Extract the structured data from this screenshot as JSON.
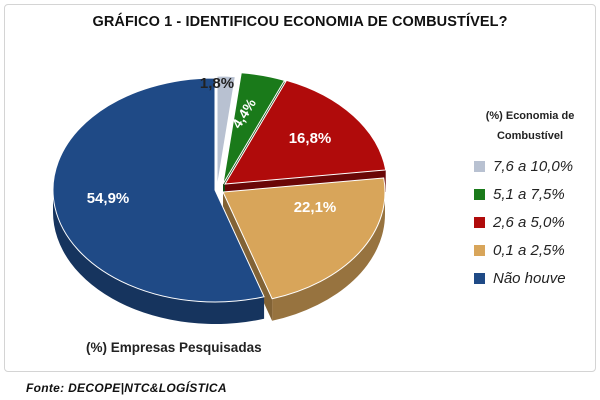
{
  "chart_data": {
    "type": "pie",
    "title": "GRÁFICO 1 - IDENTIFICOU ECONOMIA DE COMBUSTÍVEL?",
    "xlabel": "(%) Empresas Pesquisadas",
    "legend_title": "(%) Economia de Combustível",
    "legend_position": "right",
    "slices": [
      {
        "label": "7,6 a 10,0%",
        "value": 1.8,
        "value_label": "1,8%",
        "color": "#b8c1d1"
      },
      {
        "label": "5,1 a 7,5%",
        "value": 4.4,
        "value_label": "4,4%",
        "color": "#1a7a1a"
      },
      {
        "label": "2,6 a 5,0%",
        "value": 16.8,
        "value_label": "16,8%",
        "color": "#b00b0b"
      },
      {
        "label": "0,1 a 2,5%",
        "value": 22.1,
        "value_label": "22,1%",
        "color": "#d8a55a"
      },
      {
        "label": "Não houve",
        "value": 54.9,
        "value_label": "54,9%",
        "color": "#1f4a86"
      }
    ]
  },
  "source": "Fonte: DECOPE|NTC&LOGÍSTICA"
}
